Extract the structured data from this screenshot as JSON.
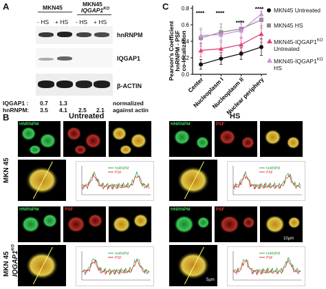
{
  "panel_a": {
    "letter": "A",
    "group1": "MKN45",
    "group2_line1": "MKN45",
    "group2_line2": "IQGAP1",
    "group2_sup": "KO",
    "lanes": [
      "- HS",
      "+ HS",
      "- HS",
      "+ HS"
    ],
    "blot_labels": [
      "hnRNPM",
      "IQGAP1",
      "β-ACTIN"
    ],
    "quant_iqgap_label": "IQGAP1 :",
    "quant_iqgap": [
      "0.7",
      "1.3"
    ],
    "quant_hnrnpm_label": "hnRNPM:",
    "quant_hnrnpm": [
      "3.5",
      "4.1",
      "2.5",
      "2.1"
    ],
    "note_line1": "normalized",
    "note_line2": "against actin"
  },
  "panel_c": {
    "letter": "C",
    "ylabel_line1": "Pearson's Coefficient",
    "ylabel_line2": "hnRNPM - PSF",
    "ylabel_line3": "co-localization",
    "significance": [
      "****",
      "****",
      "****",
      "****"
    ],
    "legend": [
      {
        "label": "MKN45 Untreated",
        "color": "#111111",
        "marker": "circle"
      },
      {
        "label": "MKN45 HS",
        "color": "#8c8c8c",
        "marker": "square"
      },
      {
        "label_line1": "MKN45-IQGAP1",
        "sup": "KO",
        "label_line2": "Untreated",
        "color": "#e2407a",
        "marker": "triangle"
      },
      {
        "label_line1": "MKN45-IQGAP1",
        "sup": "KO",
        "label_line2": "HS",
        "color": "#cf8fd9",
        "marker": "triangle"
      }
    ]
  },
  "chart_data": {
    "type": "line",
    "categories": [
      "Center",
      "Nucleoplasm I",
      "Nucleoplasm II",
      "Nuclear periphery"
    ],
    "ylim": [
      0.0,
      0.8
    ],
    "yticks": [
      "0.0",
      "0.2",
      "0.4",
      "0.6",
      "0.8"
    ],
    "series": [
      {
        "name": "MKN45 Untreated",
        "values": [
          0.12,
          0.19,
          0.25,
          0.33
        ],
        "color": "#111111",
        "marker": "circle"
      },
      {
        "name": "MKN45 HS",
        "values": [
          0.44,
          0.51,
          0.55,
          0.66
        ],
        "color": "#8c8c8c",
        "marker": "square"
      },
      {
        "name": "MKN45-IQGAP1KO Untreated",
        "values": [
          0.29,
          0.31,
          0.36,
          0.49
        ],
        "color": "#e2407a",
        "marker": "triangle"
      },
      {
        "name": "MKN45-IQGAP1KO HS",
        "values": [
          0.47,
          0.48,
          0.53,
          0.73
        ],
        "color": "#cf8fd9",
        "marker": "triangle"
      }
    ],
    "errors": [
      [
        0.06,
        0.07,
        0.07,
        0.1
      ],
      [
        0.1,
        0.1,
        0.1,
        0.1
      ],
      [
        0.08,
        0.08,
        0.08,
        0.1
      ],
      [
        0.09,
        0.09,
        0.08,
        0.07
      ]
    ]
  },
  "panel_b": {
    "letter": "B",
    "untreated_title": "Untreated",
    "hs_title": "HS",
    "row1_label": "MKN 45",
    "row2_label_line1": "MKN 45",
    "row2_label_line2": "IQGAP1",
    "row2_sup": "KO",
    "channel_green": "HNRNPM",
    "channel_red": "PSF",
    "scale1": "10µm",
    "scale2": "5µm",
    "legend_green": "hnRNPM",
    "legend_red": "PSF"
  }
}
